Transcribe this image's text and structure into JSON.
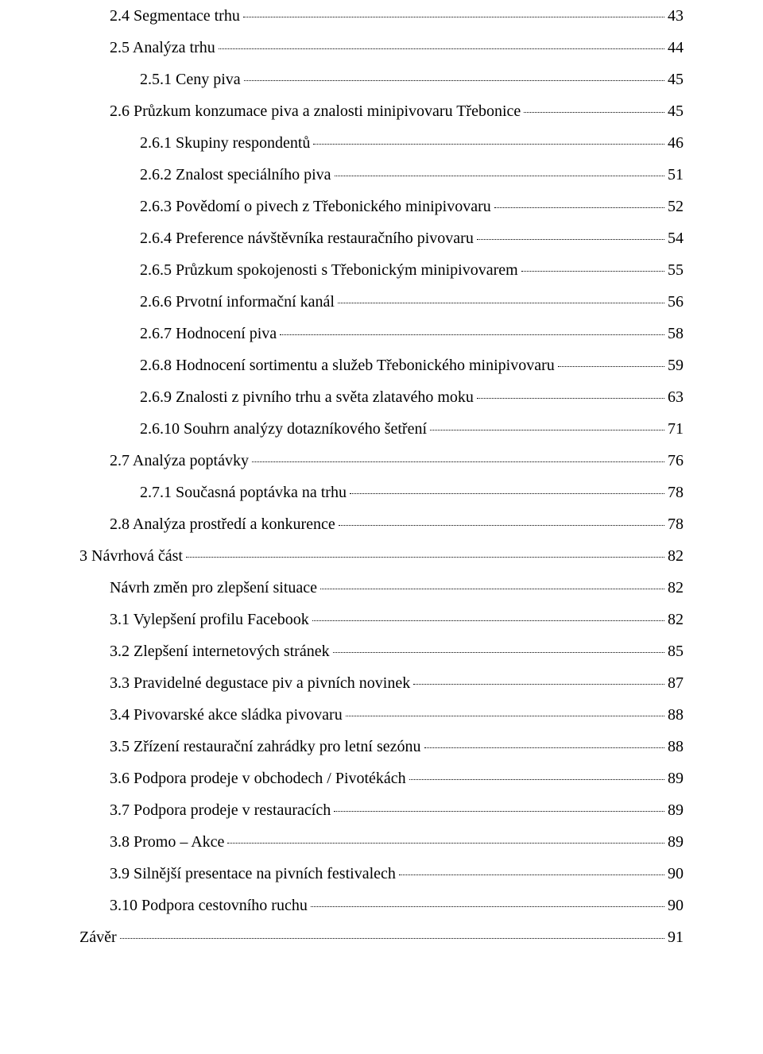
{
  "font": {
    "family": "Times New Roman",
    "size_pt": 20,
    "color": "#000000"
  },
  "background_color": "#ffffff",
  "toc": [
    {
      "indent": 1,
      "label": "2.4 Segmentace trhu",
      "page": "43"
    },
    {
      "indent": 1,
      "label": "2.5 Analýza trhu",
      "page": "44"
    },
    {
      "indent": 2,
      "label": "2.5.1 Ceny piva",
      "page": "45"
    },
    {
      "indent": 1,
      "label": "2.6 Průzkum konzumace piva a znalosti minipivovaru Třebonice",
      "page": "45"
    },
    {
      "indent": 2,
      "label": "2.6.1 Skupiny respondentů",
      "page": "46"
    },
    {
      "indent": 2,
      "label": "2.6.2 Znalost speciálního piva",
      "page": "51"
    },
    {
      "indent": 2,
      "label": "2.6.3 Povědomí o pivech z Třebonického minipivovaru",
      "page": "52"
    },
    {
      "indent": 2,
      "label": "2.6.4 Preference návštěvníka restauračního pivovaru",
      "page": "54"
    },
    {
      "indent": 2,
      "label": "2.6.5 Průzkum spokojenosti s Třebonickým minipivovarem",
      "page": "55"
    },
    {
      "indent": 2,
      "label": "2.6.6 Prvotní informační kanál",
      "page": "56"
    },
    {
      "indent": 2,
      "label": "2.6.7 Hodnocení piva",
      "page": "58"
    },
    {
      "indent": 2,
      "label": "2.6.8 Hodnocení sortimentu a služeb Třebonického minipivovaru",
      "page": "59"
    },
    {
      "indent": 2,
      "label": "2.6.9 Znalosti z pivního trhu a světa zlatavého moku",
      "page": "63"
    },
    {
      "indent": 2,
      "label": "2.6.10 Souhrn analýzy dotazníkového šetření",
      "page": "71"
    },
    {
      "indent": 1,
      "label": "2.7 Analýza poptávky",
      "page": "76"
    },
    {
      "indent": 2,
      "label": "2.7.1 Současná poptávka na trhu",
      "page": "78"
    },
    {
      "indent": 1,
      "label": "2.8 Analýza prostředí a konkurence",
      "page": "78"
    },
    {
      "indent": 0,
      "label": "3 Návrhová část",
      "page": "82"
    },
    {
      "indent": 1,
      "label": "Návrh změn pro zlepšení situace",
      "page": "82"
    },
    {
      "indent": 1,
      "label": "3.1 Vylepšení profilu Facebook",
      "page": "82"
    },
    {
      "indent": 1,
      "label": "3.2 Zlepšení internetových stránek",
      "page": "85"
    },
    {
      "indent": 1,
      "label": "3.3 Pravidelné degustace piv a pivních novinek",
      "page": "87"
    },
    {
      "indent": 1,
      "label": "3.4 Pivovarské akce sládka pivovaru",
      "page": "88"
    },
    {
      "indent": 1,
      "label": "3.5 Zřízení restaurační zahrádky pro letní sezónu",
      "page": "88"
    },
    {
      "indent": 1,
      "label": "3.6 Podpora prodeje v obchodech / Pivotékách",
      "page": "89"
    },
    {
      "indent": 1,
      "label": "3.7 Podpora prodeje v restauracích",
      "page": "89"
    },
    {
      "indent": 1,
      "label": "3.8 Promo – Akce",
      "page": "89"
    },
    {
      "indent": 1,
      "label": "3.9 Silnější presentace na pivních festivalech",
      "page": "90"
    },
    {
      "indent": 1,
      "label": "3.10 Podpora cestovního ruchu",
      "page": "90"
    },
    {
      "indent": 0,
      "label": "Závěr",
      "page": "91"
    }
  ]
}
